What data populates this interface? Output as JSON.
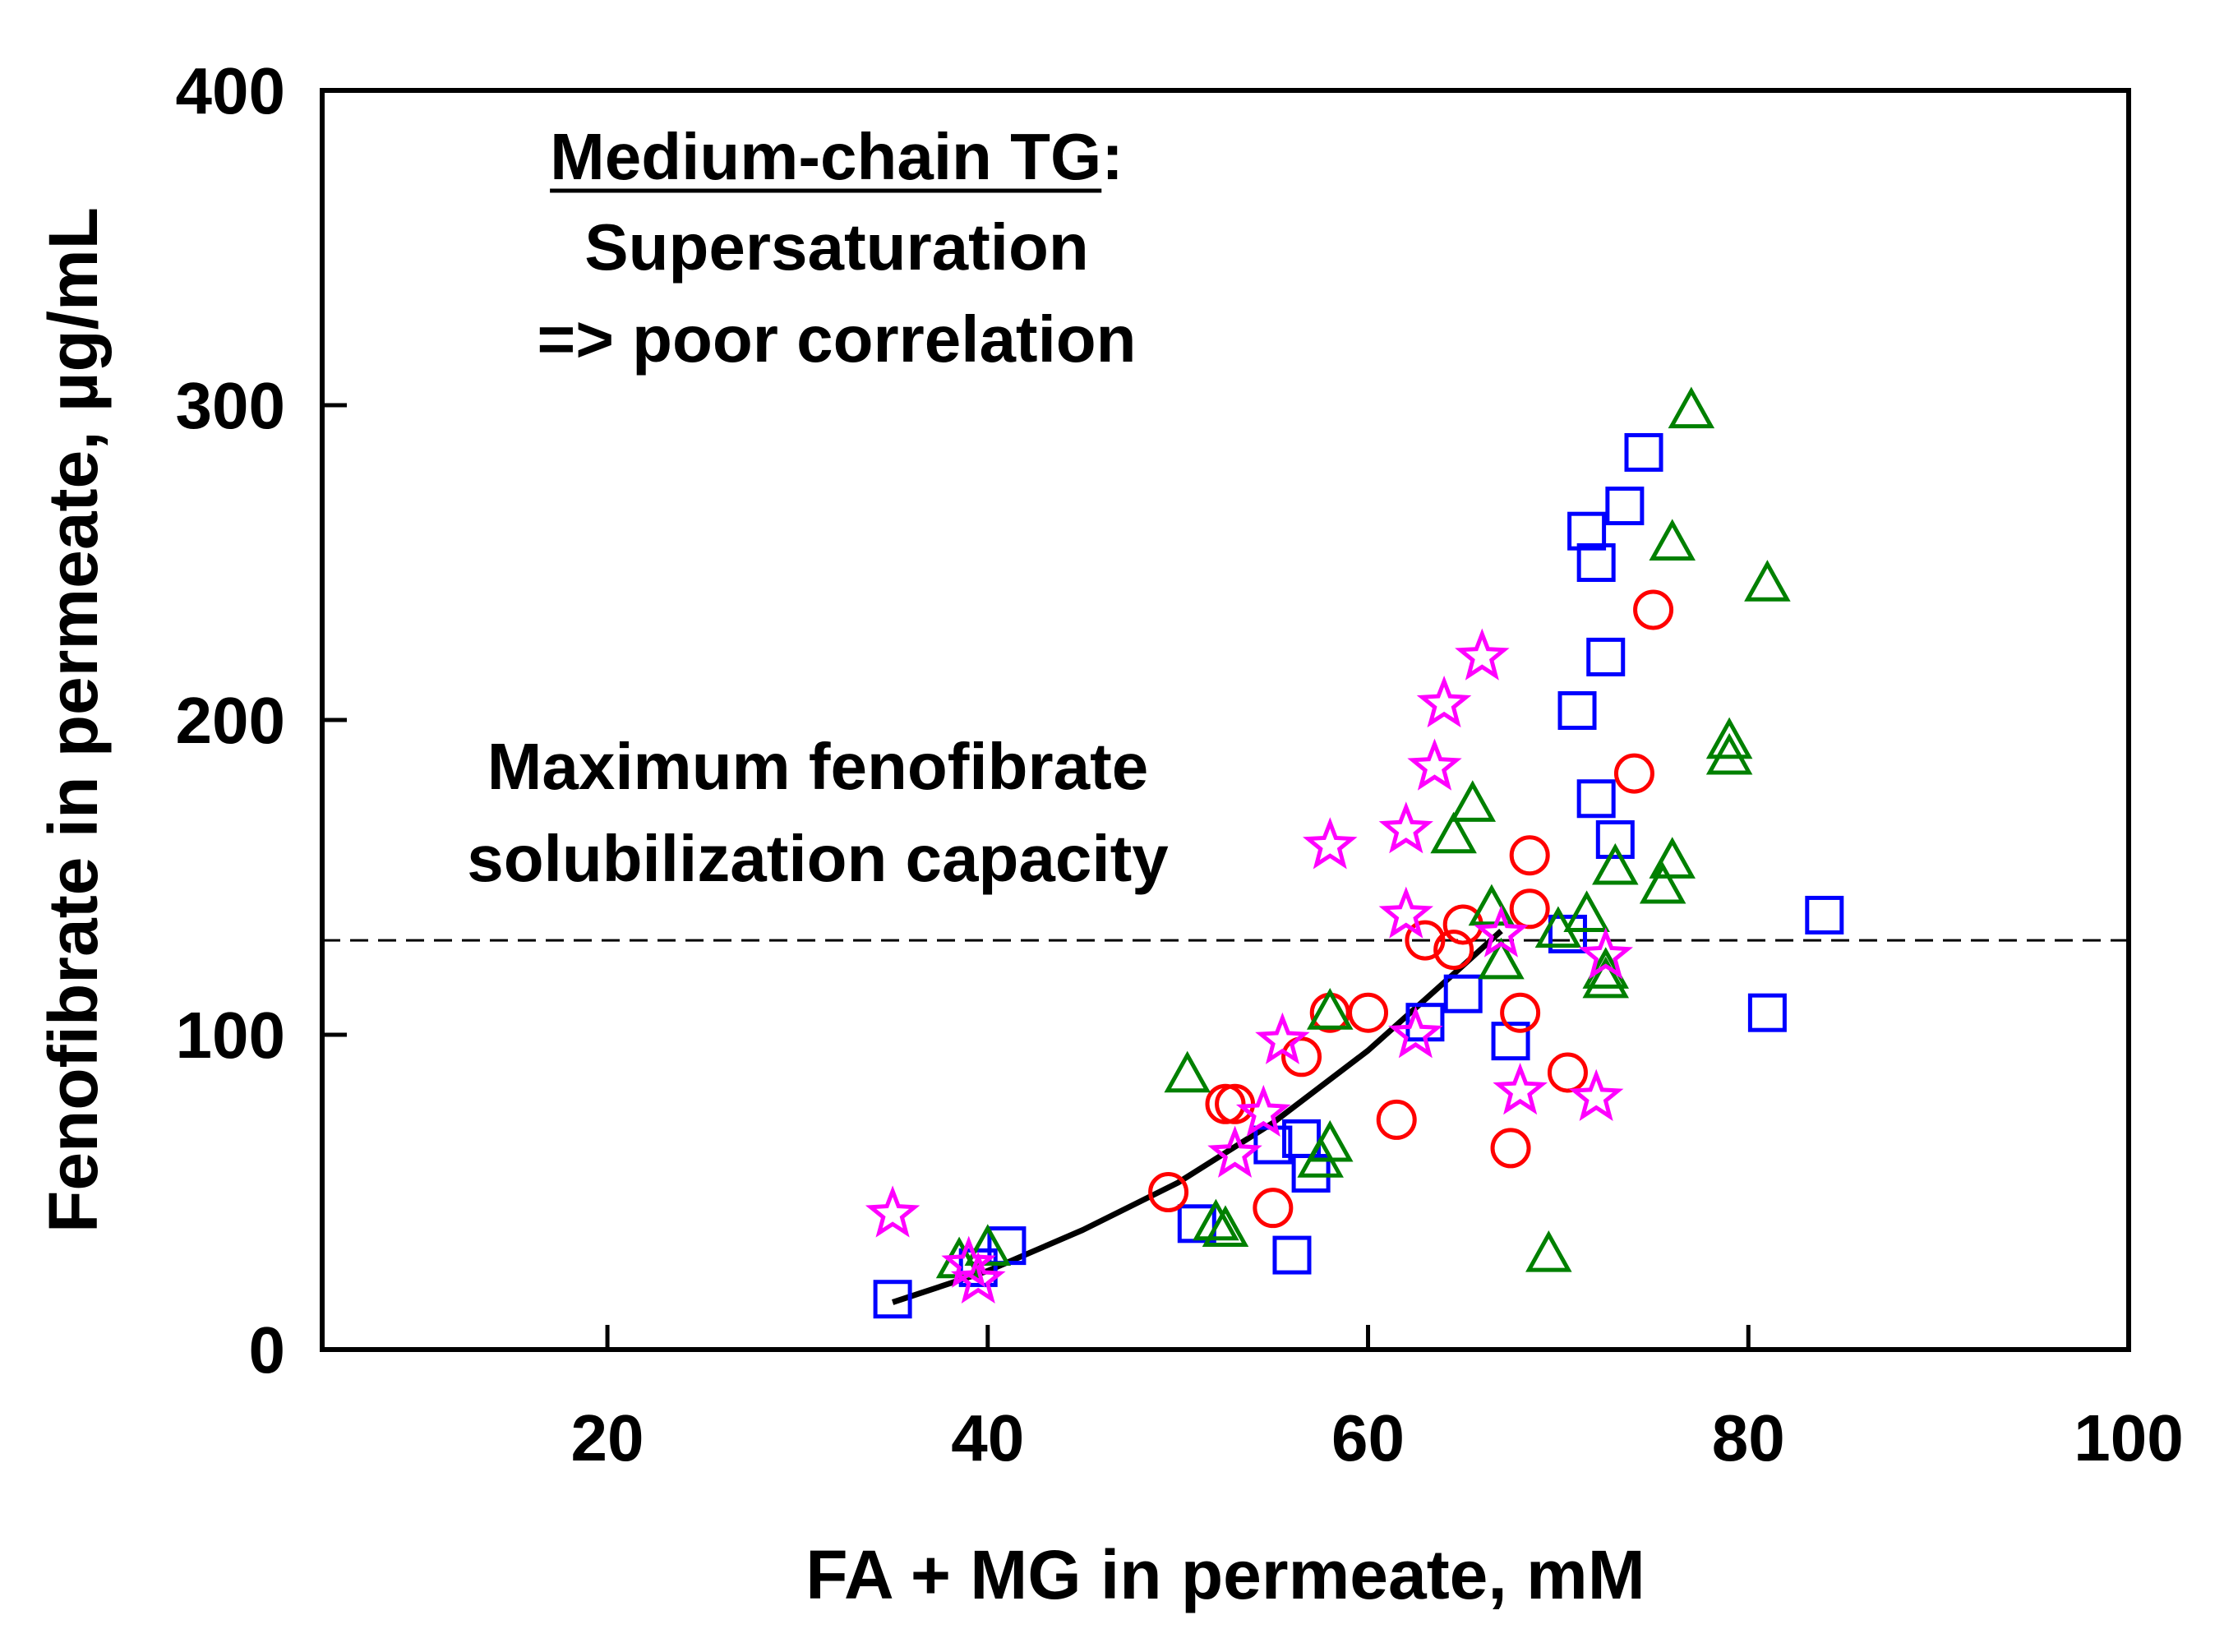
{
  "chart_data": {
    "type": "scatter",
    "title": "",
    "xlabel": "FA + MG in permeate, mM",
    "ylabel": "Fenofibrate in permeate, µg/mL",
    "xlim": [
      5,
      100
    ],
    "ylim": [
      0,
      400
    ],
    "xticks": [
      20,
      40,
      60,
      80,
      100
    ],
    "yticks": [
      0,
      100,
      200,
      300,
      400
    ],
    "grid": false,
    "annotations": {
      "heading_underlined": "Medium-chain TG",
      "heading_colon": ":",
      "line2": "Supersaturation",
      "line3": "=> poor correlation",
      "capacity_line1": "Maximum fenofibrate",
      "capacity_line2": "solubilization capacity"
    },
    "reference_line": {
      "y": 130,
      "style": "dashed",
      "color": "#000000"
    },
    "fit_curve": {
      "color": "#000000",
      "points": [
        [
          35,
          15
        ],
        [
          40,
          25
        ],
        [
          45,
          38
        ],
        [
          50,
          53
        ],
        [
          55,
          72
        ],
        [
          60,
          95
        ],
        [
          65,
          122
        ],
        [
          67,
          133
        ]
      ]
    },
    "series": [
      {
        "name": "squares",
        "marker": "square",
        "color": "#0000ff",
        "points": [
          [
            35,
            16
          ],
          [
            39.5,
            26
          ],
          [
            41,
            33
          ],
          [
            51,
            40
          ],
          [
            56,
            30
          ],
          [
            55,
            65
          ],
          [
            56.5,
            67
          ],
          [
            57,
            56
          ],
          [
            63,
            104
          ],
          [
            65,
            113
          ],
          [
            67.5,
            98
          ],
          [
            71,
            203
          ],
          [
            71.5,
            260
          ],
          [
            72,
            250
          ],
          [
            72,
            175
          ],
          [
            72.5,
            220
          ],
          [
            73,
            162
          ],
          [
            73.5,
            268
          ],
          [
            74.5,
            285
          ],
          [
            70.5,
            132
          ],
          [
            81,
            107
          ],
          [
            84,
            138
          ]
        ]
      },
      {
        "name": "circles",
        "marker": "circle",
        "color": "#ff0000",
        "points": [
          [
            49.5,
            50
          ],
          [
            52.5,
            78
          ],
          [
            53,
            78
          ],
          [
            55,
            45
          ],
          [
            56.5,
            93
          ],
          [
            58,
            107
          ],
          [
            60,
            107
          ],
          [
            61.5,
            73
          ],
          [
            63,
            130
          ],
          [
            64.5,
            127
          ],
          [
            65,
            135
          ],
          [
            67.5,
            64
          ],
          [
            68,
            107
          ],
          [
            68.5,
            157
          ],
          [
            68.5,
            140
          ],
          [
            70.5,
            88
          ],
          [
            74,
            183
          ],
          [
            75,
            235
          ]
        ]
      },
      {
        "name": "triangles",
        "marker": "triangle",
        "color": "#008000",
        "points": [
          [
            38.5,
            28
          ],
          [
            40,
            32
          ],
          [
            50.5,
            87
          ],
          [
            52,
            40
          ],
          [
            52.5,
            38
          ],
          [
            57.5,
            60
          ],
          [
            58,
            65
          ],
          [
            58,
            107
          ],
          [
            64.5,
            163
          ],
          [
            65.5,
            173
          ],
          [
            66.5,
            140
          ],
          [
            67,
            123
          ],
          [
            69.5,
            30
          ],
          [
            70,
            133
          ],
          [
            71.5,
            138
          ],
          [
            72.5,
            117
          ],
          [
            72.5,
            120
          ],
          [
            73,
            153
          ],
          [
            75.5,
            147
          ],
          [
            76,
            155
          ],
          [
            76,
            256
          ],
          [
            77,
            298
          ],
          [
            79,
            188
          ],
          [
            79,
            193
          ],
          [
            81,
            243
          ]
        ]
      },
      {
        "name": "stars",
        "marker": "star",
        "color": "#ff00ff",
        "points": [
          [
            35,
            43
          ],
          [
            39,
            27
          ],
          [
            39.5,
            22
          ],
          [
            53,
            62
          ],
          [
            54.5,
            75
          ],
          [
            55.5,
            98
          ],
          [
            58,
            160
          ],
          [
            62,
            138
          ],
          [
            62,
            165
          ],
          [
            62.5,
            100
          ],
          [
            63.5,
            185
          ],
          [
            64,
            205
          ],
          [
            66,
            220
          ],
          [
            67,
            132
          ],
          [
            68,
            82
          ],
          [
            72,
            80
          ],
          [
            72.5,
            125
          ]
        ]
      }
    ]
  }
}
